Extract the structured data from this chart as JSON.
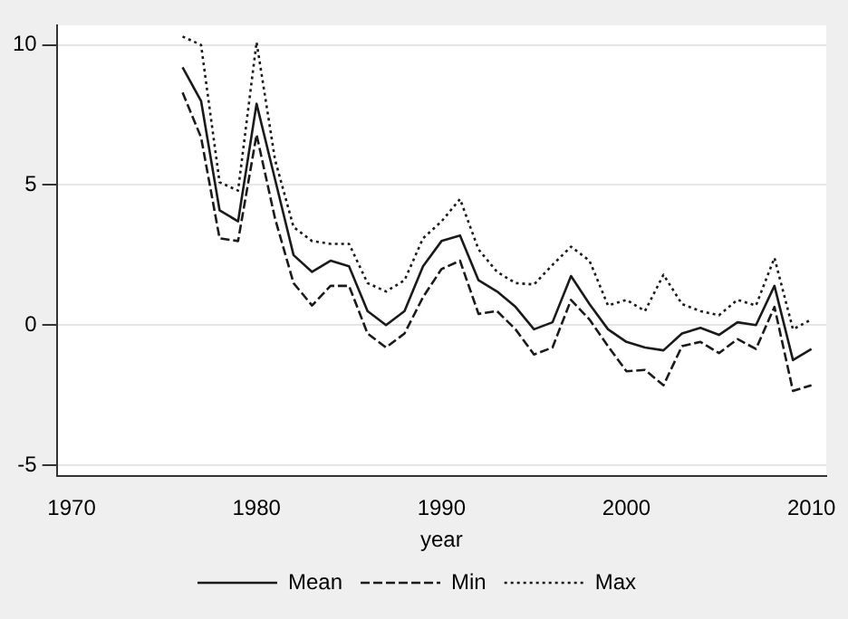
{
  "chart_data": {
    "type": "line",
    "xlabel": "year",
    "x": [
      1976,
      1977,
      1978,
      1979,
      1980,
      1981,
      1982,
      1983,
      1984,
      1985,
      1986,
      1987,
      1988,
      1989,
      1990,
      1991,
      1992,
      1993,
      1994,
      1995,
      1996,
      1997,
      1998,
      1999,
      2000,
      2001,
      2002,
      2003,
      2004,
      2005,
      2006,
      2007,
      2008,
      2009,
      2010
    ],
    "series": [
      {
        "name": "Mean",
        "color": "#1a1a1a",
        "line_style": "solid",
        "values": [
          9.2,
          8.0,
          4.1,
          3.7,
          7.9,
          5.2,
          2.5,
          1.9,
          2.3,
          2.1,
          0.5,
          0.0,
          0.5,
          2.1,
          3.0,
          3.2,
          1.6,
          1.2,
          0.65,
          -0.15,
          0.1,
          1.75,
          0.75,
          -0.15,
          -0.6,
          -0.8,
          -0.9,
          -0.3,
          -0.1,
          -0.35,
          0.1,
          0.0,
          1.4,
          -1.25,
          -0.85
        ]
      },
      {
        "name": "Min",
        "color": "#1a1a1a",
        "line_style": "dashed",
        "values": [
          8.3,
          6.7,
          3.1,
          3.0,
          6.8,
          3.8,
          1.5,
          0.7,
          1.4,
          1.4,
          -0.3,
          -0.8,
          -0.3,
          1.0,
          2.0,
          2.3,
          0.4,
          0.5,
          -0.15,
          -1.05,
          -0.8,
          0.9,
          0.2,
          -0.75,
          -1.65,
          -1.6,
          -2.15,
          -0.75,
          -0.6,
          -1.0,
          -0.5,
          -0.85,
          0.65,
          -2.35,
          -2.15
        ]
      },
      {
        "name": "Max",
        "color": "#1a1a1a",
        "line_style": "dotted",
        "values": [
          10.3,
          10.0,
          5.1,
          4.8,
          10.1,
          5.9,
          3.5,
          3.0,
          2.9,
          2.9,
          1.5,
          1.2,
          1.6,
          3.1,
          3.7,
          4.5,
          2.7,
          1.9,
          1.5,
          1.45,
          2.15,
          2.8,
          2.3,
          0.7,
          0.9,
          0.5,
          1.8,
          0.75,
          0.5,
          0.35,
          0.9,
          0.7,
          2.4,
          -0.15,
          0.2
        ]
      }
    ],
    "xlim": [
      1969.2,
      2010.8
    ],
    "xticks": [
      1970,
      1980,
      1990,
      2000,
      2010
    ],
    "ylim": [
      -5.4,
      10.7
    ],
    "yticks": [
      -5,
      0,
      5,
      10
    ],
    "grid": "y",
    "legend": "bottom",
    "marker": "none"
  }
}
